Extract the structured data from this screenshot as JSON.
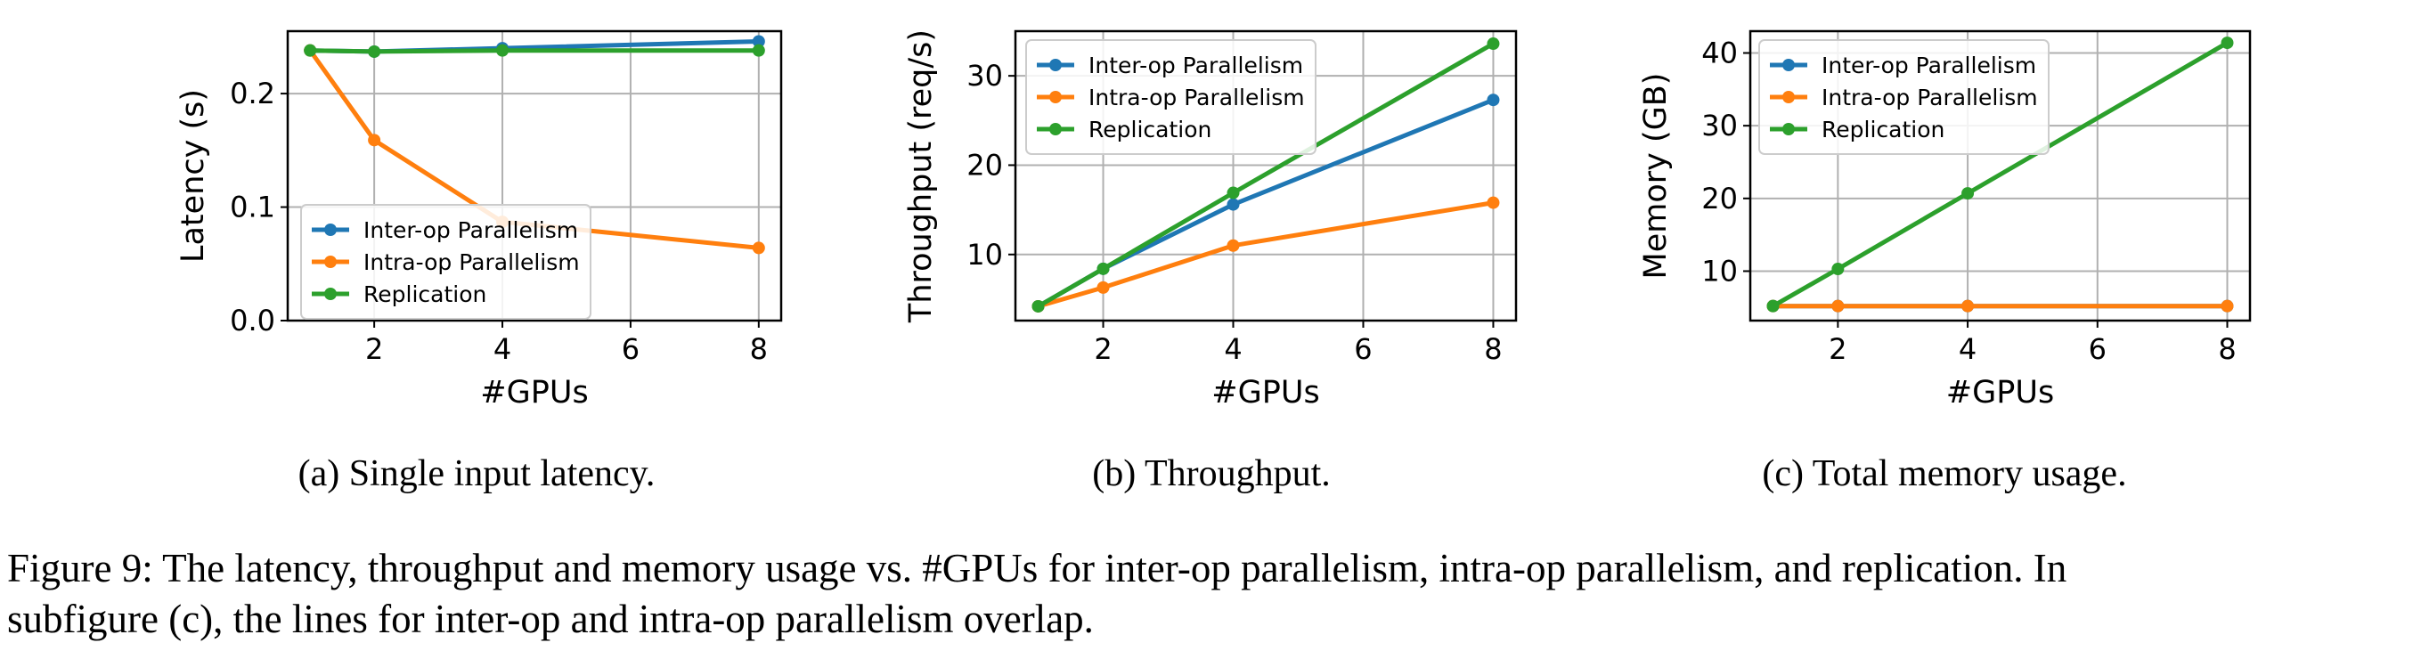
{
  "colors": {
    "inter_op": "#1f77b4",
    "intra_op": "#ff7f0e",
    "replication": "#2ca02c",
    "grid": "#b0b0b0"
  },
  "chart_data": [
    {
      "type": "line",
      "id": "latency",
      "title": "",
      "xlabel": "#GPUs",
      "ylabel": "Latency (s)",
      "xlim": [
        0.65,
        8.35
      ],
      "ylim": [
        0.0,
        0.255
      ],
      "xticks": [
        2,
        4,
        6,
        8
      ],
      "yticks": [
        0.0,
        0.1,
        0.2
      ],
      "ytick_labels": [
        "0.0",
        "0.1",
        "0.2"
      ],
      "legend_position": "lower-left",
      "x": [
        1,
        2,
        4,
        8
      ],
      "series": [
        {
          "name": "Inter-op Parallelism",
          "color_key": "inter_op",
          "values": [
            0.238,
            0.237,
            0.24,
            0.246
          ]
        },
        {
          "name": "Intra-op Parallelism",
          "color_key": "intra_op",
          "values": [
            0.238,
            0.159,
            0.087,
            0.064
          ]
        },
        {
          "name": "Replication",
          "color_key": "replication",
          "values": [
            0.238,
            0.237,
            0.238,
            0.238
          ]
        }
      ],
      "caption": "(a) Single input latency."
    },
    {
      "type": "line",
      "id": "throughput",
      "title": "",
      "xlabel": "#GPUs",
      "ylabel": "Throughput (req/s)",
      "xlim": [
        0.65,
        8.35
      ],
      "ylim": [
        2.6,
        35.0
      ],
      "xticks": [
        2,
        4,
        6,
        8
      ],
      "yticks": [
        10,
        20,
        30
      ],
      "ytick_labels": [
        "10",
        "20",
        "30"
      ],
      "legend_position": "upper-left",
      "x": [
        1,
        2,
        4,
        8
      ],
      "series": [
        {
          "name": "Inter-op Parallelism",
          "color_key": "inter_op",
          "values": [
            4.2,
            8.4,
            15.6,
            27.3
          ]
        },
        {
          "name": "Intra-op Parallelism",
          "color_key": "intra_op",
          "values": [
            4.2,
            6.3,
            11.0,
            15.8
          ]
        },
        {
          "name": "Replication",
          "color_key": "replication",
          "values": [
            4.2,
            8.4,
            16.9,
            33.6
          ]
        }
      ],
      "caption": "(b) Throughput."
    },
    {
      "type": "line",
      "id": "memory",
      "title": "",
      "xlabel": "#GPUs",
      "ylabel": "Memory (GB)",
      "xlim": [
        0.65,
        8.35
      ],
      "ylim": [
        3.2,
        43.0
      ],
      "xticks": [
        2,
        4,
        6,
        8
      ],
      "yticks": [
        10,
        20,
        30,
        40
      ],
      "ytick_labels": [
        "10",
        "20",
        "30",
        "40"
      ],
      "legend_position": "upper-left",
      "x": [
        1,
        2,
        4,
        8
      ],
      "series": [
        {
          "name": "Inter-op Parallelism",
          "color_key": "inter_op",
          "values": [
            5.2,
            5.2,
            5.2,
            5.2
          ]
        },
        {
          "name": "Intra-op Parallelism",
          "color_key": "intra_op",
          "values": [
            5.2,
            5.2,
            5.2,
            5.2
          ]
        },
        {
          "name": "Replication",
          "color_key": "replication",
          "values": [
            5.2,
            10.3,
            20.7,
            41.4
          ]
        }
      ],
      "caption": "(c) Total memory usage."
    }
  ],
  "figure_caption": {
    "line1": "Figure 9: The latency, throughput and memory usage vs. #GPUs for inter-op parallelism, intra-op parallelism, and replication. In",
    "line2": "subfigure (c), the lines for inter-op and intra-op parallelism overlap."
  }
}
